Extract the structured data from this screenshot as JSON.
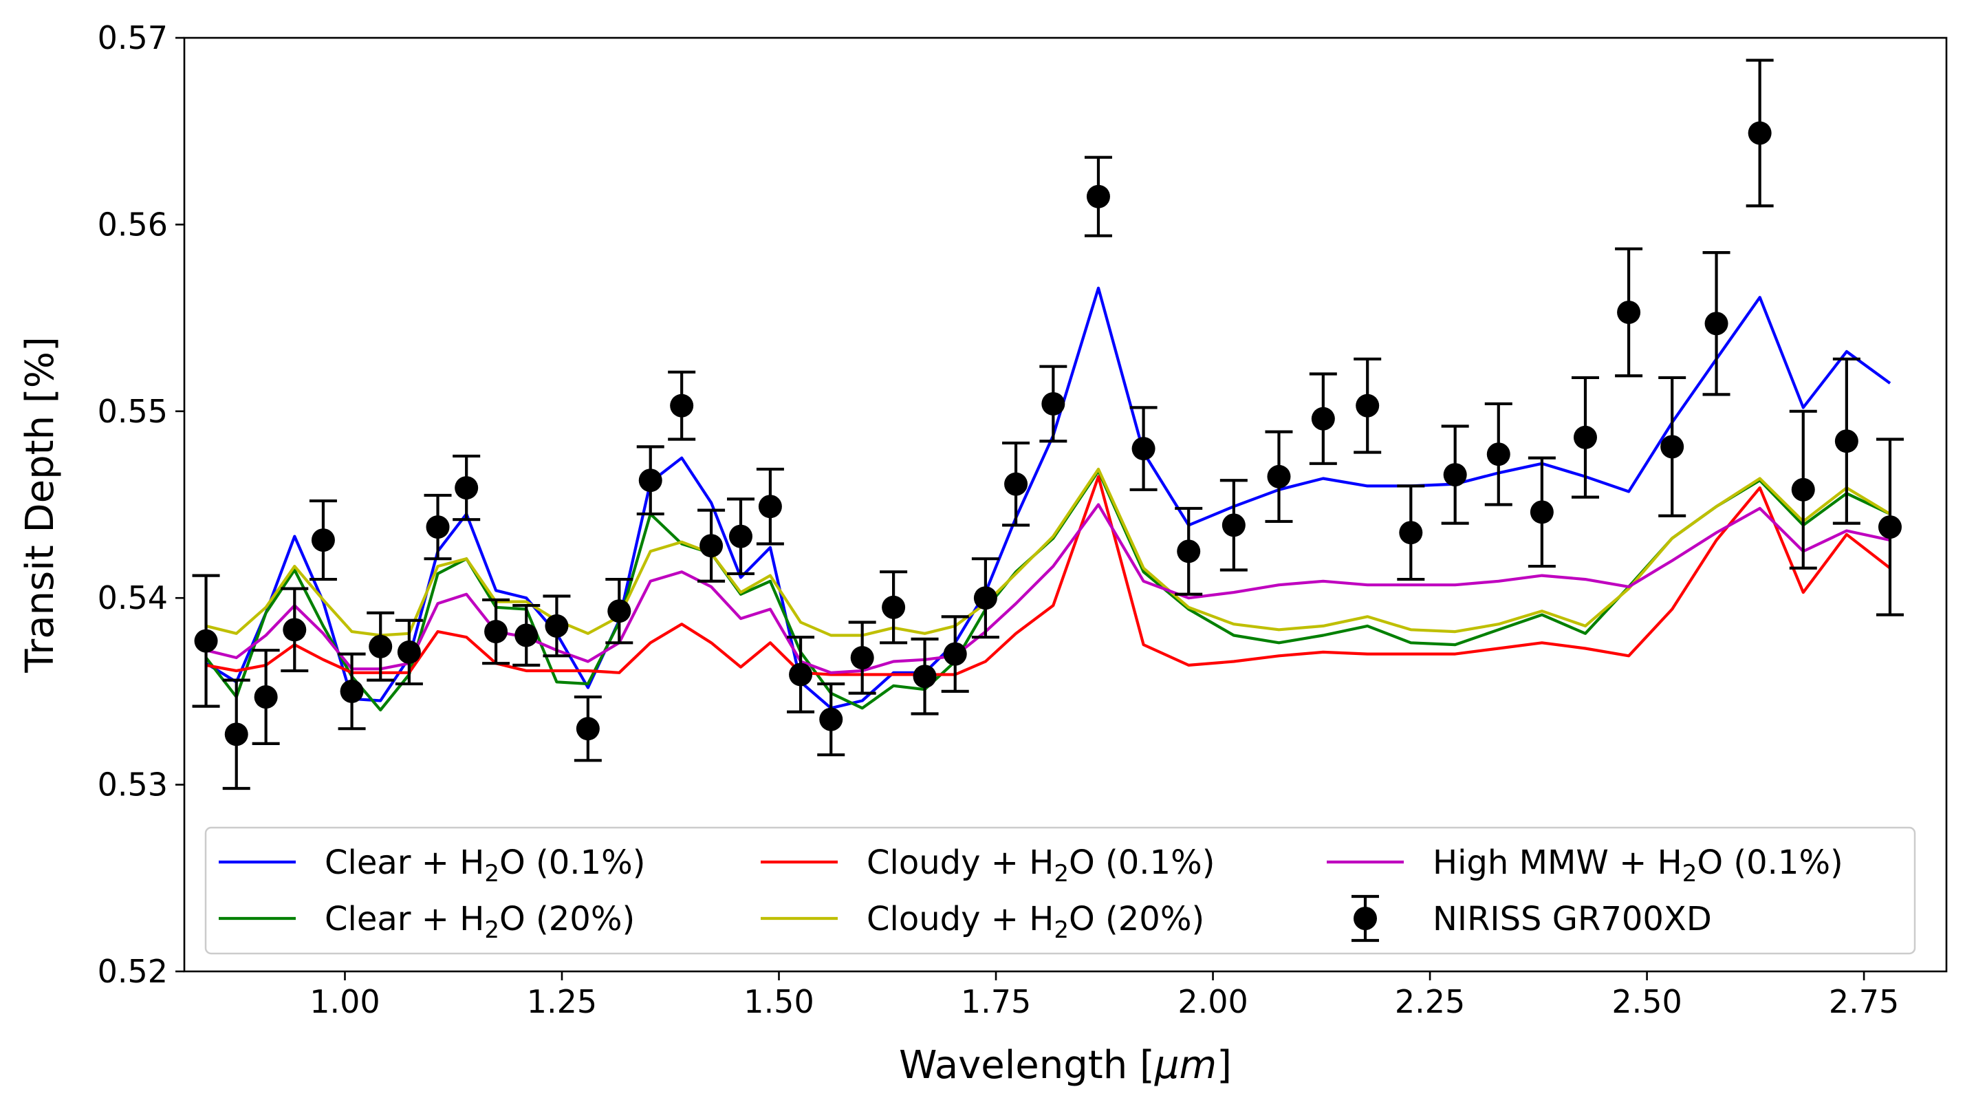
{
  "chart_data": {
    "type": "line",
    "title": "",
    "xlabel": "Wavelength [",
    "xlabel_symbol": "μm",
    "xlabel_end": "]",
    "ylabel": "Transit Depth [%]",
    "xlim": [
      0.815,
      2.845
    ],
    "ylim": [
      0.52,
      0.57
    ],
    "xticks": [
      1.0,
      1.25,
      1.5,
      1.75,
      2.0,
      2.25,
      2.5,
      2.75
    ],
    "xtick_labels": [
      "1.00",
      "1.25",
      "1.50",
      "1.75",
      "2.00",
      "2.25",
      "2.50",
      "2.75"
    ],
    "yticks": [
      0.52,
      0.53,
      0.54,
      0.55,
      0.56,
      0.57
    ],
    "ytick_labels": [
      "0.52",
      "0.53",
      "0.54",
      "0.55",
      "0.56",
      "0.57"
    ],
    "grid": false,
    "legend_position": "lower-center",
    "x": [
      0.84,
      0.875,
      0.909,
      0.942,
      0.975,
      1.008,
      1.041,
      1.074,
      1.107,
      1.14,
      1.174,
      1.209,
      1.244,
      1.28,
      1.316,
      1.352,
      1.388,
      1.422,
      1.456,
      1.49,
      1.525,
      1.56,
      1.596,
      1.632,
      1.668,
      1.703,
      1.738,
      1.773,
      1.816,
      1.868,
      1.92,
      1.972,
      2.024,
      2.076,
      2.127,
      2.178,
      2.228,
      2.279,
      2.329,
      2.379,
      2.429,
      2.479,
      2.529,
      2.58,
      2.63,
      2.68,
      2.73,
      2.78
    ],
    "series": [
      {
        "name": "Clear + H",
        "sub": "2",
        "name_end": "O (0.1%)",
        "color": "#0000ff",
        "values": [
          0.5365,
          0.5355,
          0.5392,
          0.5433,
          0.5398,
          0.5346,
          0.5345,
          0.5368,
          0.5425,
          0.5445,
          0.5404,
          0.54,
          0.5381,
          0.5352,
          0.5388,
          0.5462,
          0.5475,
          0.5451,
          0.5411,
          0.5427,
          0.5355,
          0.5341,
          0.5345,
          0.536,
          0.536,
          0.5376,
          0.5403,
          0.5443,
          0.5487,
          0.5566,
          0.5478,
          0.5439,
          0.5449,
          0.5458,
          0.5464,
          0.546,
          0.546,
          0.5461,
          0.5467,
          0.5472,
          0.5465,
          0.5457,
          0.5494,
          0.5528,
          0.5561,
          0.5502,
          0.5532,
          0.5515
        ]
      },
      {
        "name": "Clear + H",
        "sub": "2",
        "name_end": "O (20%)",
        "color": "#008000",
        "values": [
          0.5368,
          0.5347,
          0.5392,
          0.5415,
          0.5385,
          0.5358,
          0.534,
          0.5359,
          0.5413,
          0.5421,
          0.5395,
          0.5394,
          0.5355,
          0.5354,
          0.5387,
          0.5445,
          0.5429,
          0.5424,
          0.5402,
          0.5409,
          0.5371,
          0.5349,
          0.5341,
          0.5353,
          0.5351,
          0.5366,
          0.5394,
          0.5414,
          0.5432,
          0.5468,
          0.5414,
          0.5394,
          0.538,
          0.5376,
          0.538,
          0.5385,
          0.5376,
          0.5375,
          0.5383,
          0.5391,
          0.5381,
          0.5406,
          0.5432,
          0.5449,
          0.5463,
          0.5439,
          0.5456,
          0.5445
        ]
      },
      {
        "name": "Cloudy + H",
        "sub": "2",
        "name_end": "O (0.1%)",
        "color": "#ff0000",
        "values": [
          0.5364,
          0.5361,
          0.5364,
          0.5375,
          0.5367,
          0.536,
          0.536,
          0.536,
          0.5382,
          0.5379,
          0.5365,
          0.5361,
          0.5361,
          0.5361,
          0.536,
          0.5376,
          0.5386,
          0.5376,
          0.5363,
          0.5376,
          0.536,
          0.5359,
          0.5359,
          0.5359,
          0.5359,
          0.5359,
          0.5366,
          0.5381,
          0.5396,
          0.5465,
          0.5375,
          0.5364,
          0.5366,
          0.5369,
          0.5371,
          0.537,
          0.537,
          0.537,
          0.5373,
          0.5376,
          0.5373,
          0.5369,
          0.5394,
          0.5431,
          0.5459,
          0.5403,
          0.5434,
          0.5416
        ]
      },
      {
        "name": "Cloudy + H",
        "sub": "2",
        "name_end": "O (20%)",
        "color": "#bfbf00",
        "values": [
          0.5385,
          0.5381,
          0.5395,
          0.5417,
          0.5399,
          0.5382,
          0.538,
          0.5381,
          0.5417,
          0.5421,
          0.5398,
          0.5398,
          0.5388,
          0.5381,
          0.539,
          0.5425,
          0.543,
          0.5424,
          0.5403,
          0.5412,
          0.5387,
          0.538,
          0.538,
          0.5384,
          0.5381,
          0.5385,
          0.5397,
          0.5413,
          0.5433,
          0.5469,
          0.5416,
          0.5395,
          0.5386,
          0.5383,
          0.5385,
          0.539,
          0.5383,
          0.5382,
          0.5386,
          0.5393,
          0.5385,
          0.5405,
          0.5432,
          0.5449,
          0.5464,
          0.5441,
          0.5459,
          0.5445
        ]
      },
      {
        "name": "High MMW + H",
        "sub": "2",
        "name_end": "O (0.1%)",
        "color": "#bf00bf",
        "values": [
          0.5372,
          0.5368,
          0.538,
          0.5396,
          0.5381,
          0.5362,
          0.5362,
          0.5365,
          0.5397,
          0.5402,
          0.5382,
          0.5379,
          0.5372,
          0.5366,
          0.5376,
          0.5409,
          0.5414,
          0.5406,
          0.5389,
          0.5394,
          0.5366,
          0.536,
          0.5361,
          0.5366,
          0.5367,
          0.5369,
          0.5382,
          0.5397,
          0.5417,
          0.545,
          0.5409,
          0.54,
          0.5403,
          0.5407,
          0.5409,
          0.5407,
          0.5407,
          0.5407,
          0.5409,
          0.5412,
          0.541,
          0.5406,
          0.542,
          0.5435,
          0.5448,
          0.5425,
          0.5436,
          0.5431
        ]
      }
    ],
    "observations": {
      "name": "NIRISS GR700XD",
      "color": "#000000",
      "y": [
        0.5377,
        0.5327,
        0.5347,
        0.5383,
        0.5431,
        0.535,
        0.5374,
        0.5371,
        0.5438,
        0.5459,
        0.5382,
        0.538,
        0.5385,
        0.533,
        0.5393,
        0.5463,
        0.5503,
        0.5428,
        0.5433,
        0.5449,
        0.5359,
        0.5335,
        0.5368,
        0.5395,
        0.5358,
        0.537,
        0.54,
        0.5461,
        0.5504,
        0.5615,
        0.548,
        0.5425,
        0.5439,
        0.5465,
        0.5496,
        0.5503,
        0.5435,
        0.5466,
        0.5477,
        0.5446,
        0.5486,
        0.5553,
        0.5481,
        0.5547,
        0.5649,
        0.5458,
        0.5484,
        0.5438
      ],
      "yerr": [
        0.0035,
        0.0029,
        0.0025,
        0.0022,
        0.0021,
        0.002,
        0.0018,
        0.0017,
        0.0017,
        0.0017,
        0.0017,
        0.0016,
        0.0016,
        0.0017,
        0.0017,
        0.0018,
        0.0018,
        0.0019,
        0.002,
        0.002,
        0.002,
        0.0019,
        0.0019,
        0.0019,
        0.002,
        0.002,
        0.0021,
        0.0022,
        0.002,
        0.0021,
        0.0022,
        0.0023,
        0.0024,
        0.0024,
        0.0024,
        0.0025,
        0.0025,
        0.0026,
        0.0027,
        0.0029,
        0.0032,
        0.0034,
        0.0037,
        0.0038,
        0.0039,
        0.0042,
        0.0044,
        0.0047
      ]
    }
  }
}
